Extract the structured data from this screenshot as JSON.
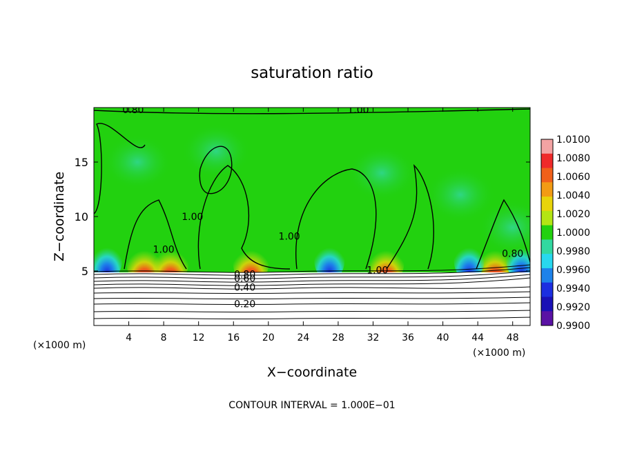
{
  "chart_data": {
    "type": "heatmap",
    "title": "saturation ratio",
    "xlabel": "X−coordinate",
    "ylabel": "Z−coordinate",
    "x_unit_left": "(×1000 m)",
    "x_unit_right": "(×1000 m)",
    "xlim": [
      0,
      50
    ],
    "ylim": [
      0,
      20
    ],
    "x_ticks": [
      4,
      8,
      12,
      16,
      20,
      24,
      28,
      32,
      36,
      40,
      44,
      48
    ],
    "x_tick_labels": [
      "4",
      "8",
      "12",
      "16",
      "20",
      "24",
      "28",
      "32",
      "36",
      "40",
      "44",
      "48"
    ],
    "y_ticks": [
      5,
      10,
      15
    ],
    "y_tick_labels": [
      "5",
      "10",
      "15"
    ],
    "footer": "CONTOUR INTERVAL = 1.000E−01",
    "contour_interval": 0.1,
    "colorbar": {
      "min": 0.99,
      "max": 1.01,
      "labels": [
        "1.0100",
        "1.0080",
        "1.0060",
        "1.0040",
        "1.0020",
        "1.0000",
        "0.9980",
        "0.9960",
        "0.9940",
        "0.9920",
        "0.9900"
      ],
      "colors": [
        "#f3a3a3",
        "#ef2a2a",
        "#f0601a",
        "#f29b14",
        "#e8d40a",
        "#b4e514",
        "#22d10f",
        "#32d8a0",
        "#28d8ee",
        "#1d82ea",
        "#1c2ee0",
        "#1a10b6",
        "#5a12a4"
      ]
    },
    "contour_labels": [
      {
        "text": "0.80",
        "x": 4.5,
        "y": 19.8
      },
      {
        "text": "1.00",
        "x": 30.3,
        "y": 19.8
      },
      {
        "text": "1.00",
        "x": 11.3,
        "y": 10
      },
      {
        "text": "1.00",
        "x": 8.0,
        "y": 7.0
      },
      {
        "text": "1.00",
        "x": 22.4,
        "y": 8.2
      },
      {
        "text": "1.00",
        "x": 32.5,
        "y": 5.1
      },
      {
        "text": "0.80",
        "x": 17.3,
        "y": 4.7
      },
      {
        "text": "0.60",
        "x": 17.3,
        "y": 4.35
      },
      {
        "text": "0.40",
        "x": 17.3,
        "y": 3.5
      },
      {
        "text": "0.20",
        "x": 17.3,
        "y": 2.0
      },
      {
        "text": "0.80",
        "x": 48.0,
        "y": 6.6
      }
    ],
    "field_description": {
      "domain_mean": 1.0,
      "lower_layer_top_z": 5.0,
      "red_hotspots_x": [
        5.8,
        8.8,
        18,
        33.5,
        46
      ],
      "blue_low_regions_x": [
        1.5,
        27,
        43,
        49
      ]
    }
  }
}
